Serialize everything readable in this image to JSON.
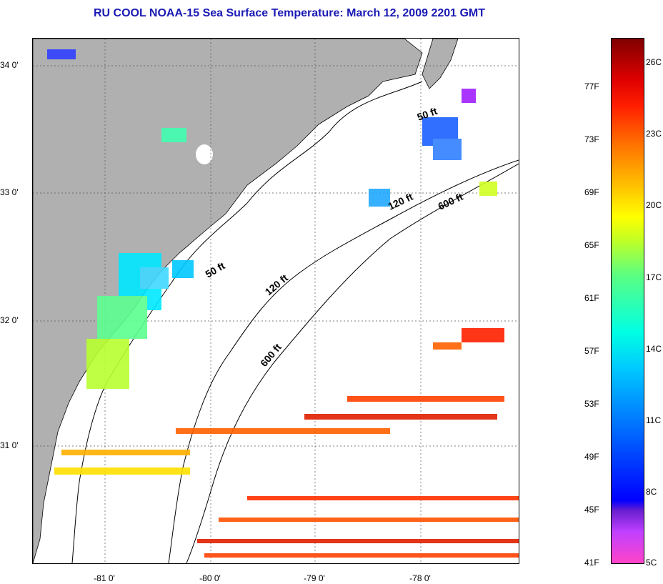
{
  "title": "RU COOL  NOAA-15  Sea Surface Temperature:  March 12, 2009 2201 GMT",
  "map": {
    "lat_labels": [
      "34 0'",
      "33 0'",
      "32 0'",
      "31 0'"
    ],
    "lon_labels": [
      "-81 0'",
      "-80 0'",
      "-79 0'",
      "-78 0'"
    ],
    "isobath_labels": {
      "north_50ft": "50 ft",
      "mid_50ft": "50 ft",
      "north_120ft": "120 ft",
      "mid_120ft": "120 ft",
      "north_600ft": "600 ft",
      "mid_600ft": "600 ft"
    },
    "colors": {
      "land": "#b0b0b0",
      "ocean": "#ffffff",
      "title": "#1a1ab4"
    }
  },
  "colorbar": {
    "fahrenheit_labels": [
      "77F",
      "73F",
      "69F",
      "65F",
      "61F",
      "57F",
      "53F",
      "49F",
      "45F",
      "41F"
    ],
    "celsius_labels": [
      "26C",
      "23C",
      "20C",
      "17C",
      "14C",
      "11C",
      "8C",
      "5C"
    ]
  }
}
